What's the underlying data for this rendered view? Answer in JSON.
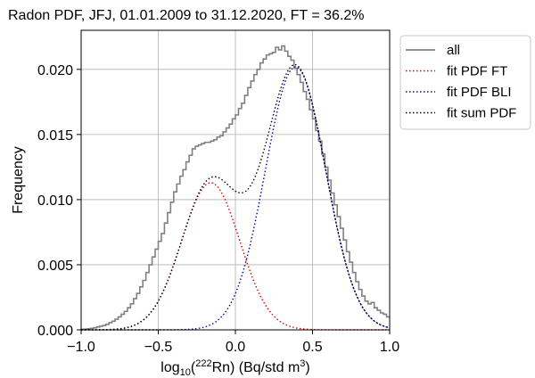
{
  "chart_data": {
    "type": "line",
    "title": "Radon PDF, JFJ, 01.01.2009 to 31.12.2020, FT = 36.2%",
    "xlabel": {
      "prefix": "log",
      "sub": "10",
      "open": "(",
      "sup": "222",
      "mid": "Rn) (Bq/std m",
      "sup2": "3",
      "close": ")"
    },
    "ylabel": "Frequency",
    "xlim": [
      -1.0,
      1.0
    ],
    "ylim": [
      0.0,
      0.023
    ],
    "x_ticks": [
      -1.0,
      -0.5,
      0.0,
      0.5,
      1.0
    ],
    "x_tick_labels": [
      "−1.0",
      "−0.5",
      "0.0",
      "0.5",
      "1.0"
    ],
    "y_ticks": [
      0.0,
      0.005,
      0.01,
      0.015,
      0.02
    ],
    "y_tick_labels": [
      "0.000",
      "0.005",
      "0.010",
      "0.015",
      "0.020"
    ],
    "grid": true,
    "legend_position": "outside-top-right",
    "series": [
      {
        "name": "all",
        "style": "step",
        "color": "#808080",
        "bin_width": 0.02,
        "x": [
          -1.0,
          -0.98,
          -0.96,
          -0.94,
          -0.92,
          -0.9,
          -0.88,
          -0.86,
          -0.84,
          -0.82,
          -0.8,
          -0.78,
          -0.76,
          -0.74,
          -0.72,
          -0.7,
          -0.68,
          -0.66,
          -0.64,
          -0.62,
          -0.6,
          -0.58,
          -0.56,
          -0.54,
          -0.52,
          -0.5,
          -0.48,
          -0.46,
          -0.44,
          -0.42,
          -0.4,
          -0.38,
          -0.36,
          -0.34,
          -0.32,
          -0.3,
          -0.28,
          -0.26,
          -0.24,
          -0.22,
          -0.2,
          -0.18,
          -0.16,
          -0.14,
          -0.12,
          -0.1,
          -0.08,
          -0.06,
          -0.04,
          -0.02,
          0.0,
          0.02,
          0.04,
          0.06,
          0.08,
          0.1,
          0.12,
          0.14,
          0.16,
          0.18,
          0.2,
          0.22,
          0.24,
          0.26,
          0.28,
          0.3,
          0.32,
          0.34,
          0.36,
          0.38,
          0.4,
          0.42,
          0.44,
          0.46,
          0.48,
          0.5,
          0.52,
          0.54,
          0.56,
          0.58,
          0.6,
          0.62,
          0.64,
          0.66,
          0.68,
          0.7,
          0.72,
          0.74,
          0.76,
          0.78,
          0.8,
          0.82,
          0.84,
          0.86,
          0.88,
          0.9,
          0.92,
          0.94,
          0.96,
          0.98
        ],
        "values": [
          5e-05,
          6e-05,
          8e-05,
          0.00012,
          0.00016,
          0.00022,
          0.00028,
          0.00034,
          0.00042,
          0.00055,
          0.00066,
          0.00082,
          0.001,
          0.0012,
          0.00142,
          0.0017,
          0.002,
          0.0024,
          0.0028,
          0.0033,
          0.0038,
          0.0044,
          0.005,
          0.0056,
          0.0062,
          0.0068,
          0.0074,
          0.0082,
          0.009,
          0.0098,
          0.0106,
          0.0112,
          0.0118,
          0.0123,
          0.0129,
          0.0134,
          0.0139,
          0.0141,
          0.0142,
          0.0143,
          0.0144,
          0.0144,
          0.0145,
          0.0146,
          0.0148,
          0.0149,
          0.0152,
          0.0155,
          0.0158,
          0.0162,
          0.0165,
          0.017,
          0.0174,
          0.018,
          0.0186,
          0.0191,
          0.0196,
          0.02,
          0.0205,
          0.0208,
          0.0211,
          0.0212,
          0.0213,
          0.0217,
          0.0215,
          0.0218,
          0.0214,
          0.021,
          0.0207,
          0.0201,
          0.0196,
          0.019,
          0.0183,
          0.0177,
          0.0169,
          0.0162,
          0.0153,
          0.0145,
          0.0135,
          0.0125,
          0.0115,
          0.0105,
          0.0096,
          0.0087,
          0.0078,
          0.0069,
          0.006,
          0.0052,
          0.0044,
          0.0037,
          0.0031,
          0.0026,
          0.0022,
          0.002,
          0.0021,
          0.0017,
          0.0015,
          0.0013,
          0.0012,
          0.001
        ]
      },
      {
        "name": "fit PDF FT",
        "style": "dotted",
        "color": "#e00000",
        "curve": {
          "kind": "gaussian",
          "amplitude": 0.0113,
          "center": -0.16,
          "sigma": 0.188
        }
      },
      {
        "name": "fit PDF BLI",
        "style": "dotted",
        "color": "#0000cc",
        "curve": {
          "kind": "gaussian",
          "amplitude": 0.0202,
          "center": 0.39,
          "sigma": 0.196
        }
      },
      {
        "name": "fit sum PDF",
        "style": "dotted",
        "color": "#000000",
        "curve": {
          "kind": "sum",
          "of": [
            "fit PDF FT",
            "fit PDF BLI"
          ]
        }
      }
    ]
  }
}
